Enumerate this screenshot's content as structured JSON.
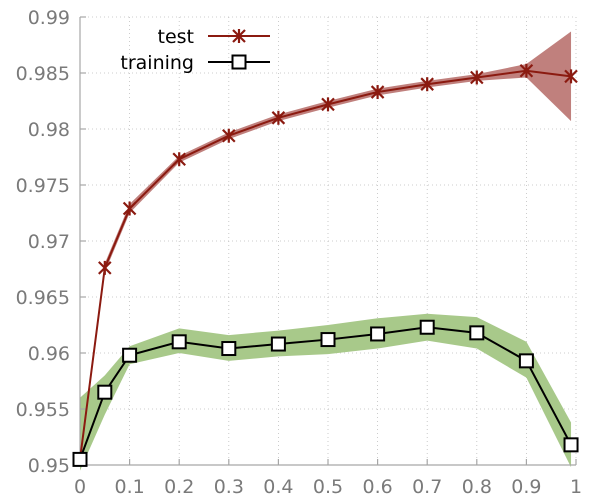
{
  "chart_data": {
    "type": "line",
    "title": "",
    "xlabel": "",
    "ylabel": "",
    "xlim": [
      0,
      1
    ],
    "ylim": [
      0.95,
      0.99
    ],
    "xticks": [
      "0",
      "0.1",
      "0.2",
      "0.3",
      "0.4",
      "0.5",
      "0.6",
      "0.7",
      "0.8",
      "0.9",
      "1"
    ],
    "yticks": [
      "0.95",
      "0.955",
      "0.96",
      "0.965",
      "0.97",
      "0.975",
      "0.98",
      "0.985",
      "0.99"
    ],
    "grid": true,
    "legend_position": "top-left",
    "series": [
      {
        "name": "test",
        "marker": "x-star",
        "line_color": "#8b1a10",
        "band_color": "#c0807d",
        "x": [
          0,
          0.05,
          0.1,
          0.2,
          0.3,
          0.4,
          0.5,
          0.6,
          0.7,
          0.8,
          0.9,
          0.99
        ],
        "y": [
          0.9505,
          0.9676,
          0.9729,
          0.9773,
          0.9794,
          0.981,
          0.9822,
          0.9833,
          0.984,
          0.9846,
          0.9852,
          0.9847
        ],
        "band_low": [
          0.9503,
          0.9672,
          0.9725,
          0.977,
          0.9791,
          0.9807,
          0.9819,
          0.983,
          0.9837,
          0.9843,
          0.9846,
          0.9807
        ],
        "band_high": [
          0.9507,
          0.968,
          0.9733,
          0.9776,
          0.9797,
          0.9813,
          0.9825,
          0.9836,
          0.9843,
          0.9849,
          0.9858,
          0.9887
        ]
      },
      {
        "name": "training",
        "marker": "square",
        "line_color": "#000000",
        "band_color": "#a8c98a",
        "x": [
          0,
          0.05,
          0.1,
          0.2,
          0.3,
          0.4,
          0.5,
          0.6,
          0.7,
          0.8,
          0.9,
          0.99
        ],
        "y": [
          0.9505,
          0.9565,
          0.9598,
          0.961,
          0.9604,
          0.9608,
          0.9612,
          0.9617,
          0.9623,
          0.9618,
          0.9593,
          0.9518
        ],
        "band_low": [
          0.9495,
          0.9545,
          0.959,
          0.96,
          0.9593,
          0.9597,
          0.9599,
          0.9604,
          0.9611,
          0.9604,
          0.9578,
          0.9498
        ],
        "band_high": [
          0.956,
          0.958,
          0.9606,
          0.9622,
          0.9616,
          0.962,
          0.9625,
          0.9631,
          0.9635,
          0.9632,
          0.961,
          0.9538
        ]
      }
    ]
  }
}
